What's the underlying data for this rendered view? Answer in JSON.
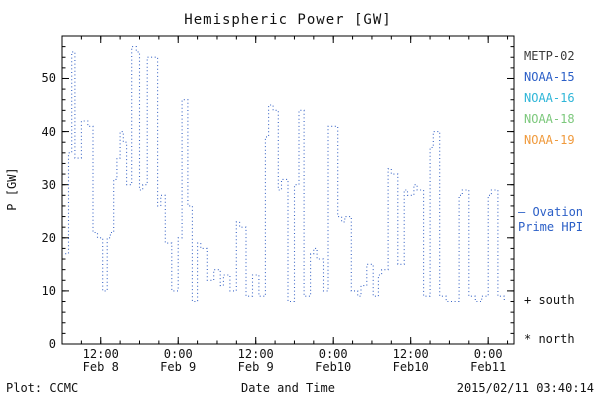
{
  "title": "Hemispheric Power [GW]",
  "axes": {
    "ylabel": "P [GW]",
    "xlabel": "Date and Time"
  },
  "footer": {
    "left": "Plot: CCMC",
    "right": "2015/02/11 03:40:14"
  },
  "legend": {
    "satellites": [
      {
        "label": "METP-02",
        "color": "#3a3a3a"
      },
      {
        "label": "NOAA-15",
        "color": "#2b5fc7"
      },
      {
        "label": "NOAA-16",
        "color": "#2fb6d8"
      },
      {
        "label": "NOAA-18",
        "color": "#7cc87c"
      },
      {
        "label": "NOAA-19",
        "color": "#f09a3c"
      }
    ],
    "ovation": {
      "label": "– Ovation\nPrime HPI",
      "color": "#2b5fc7"
    },
    "south": "+ south",
    "north": "* north"
  },
  "chart_data": {
    "type": "line",
    "title": "Hemispheric Power [GW]",
    "xlabel": "Date and Time",
    "ylabel": "P [GW]",
    "legend_position": "right",
    "grid": false,
    "line_color": "#3b66c6",
    "line_style": "dotted",
    "interpolation": "step",
    "x_unit": "hours since 2015-02-08 00:00",
    "xlim": [
      6,
      76
    ],
    "ylim": [
      0,
      58
    ],
    "yticks": [
      0,
      10,
      20,
      30,
      40,
      50
    ],
    "xticks": [
      {
        "pos": 12,
        "label": "12:00",
        "sub": "Feb 8"
      },
      {
        "pos": 24,
        "label": "0:00",
        "sub": "Feb 9"
      },
      {
        "pos": 36,
        "label": "12:00",
        "sub": "Feb 9"
      },
      {
        "pos": 48,
        "label": "0:00",
        "sub": "Feb10"
      },
      {
        "pos": 60,
        "label": "12:00",
        "sub": "Feb10"
      },
      {
        "pos": 72,
        "label": "0:00",
        "sub": "Feb11"
      }
    ],
    "series": [
      {
        "name": "Ovation Prime HPI",
        "points": [
          [
            6.5,
            17
          ],
          [
            7,
            36
          ],
          [
            7.5,
            55
          ],
          [
            8,
            35
          ],
          [
            9,
            42
          ],
          [
            10,
            41
          ],
          [
            10.8,
            21
          ],
          [
            11.5,
            20
          ],
          [
            12.3,
            10
          ],
          [
            13,
            20
          ],
          [
            13.5,
            21
          ],
          [
            14,
            31
          ],
          [
            14.5,
            35
          ],
          [
            15,
            40
          ],
          [
            15.5,
            38
          ],
          [
            16,
            30
          ],
          [
            16.8,
            56
          ],
          [
            17.5,
            55
          ],
          [
            18,
            29
          ],
          [
            18.5,
            30
          ],
          [
            19.2,
            54
          ],
          [
            20,
            54
          ],
          [
            20.8,
            26
          ],
          [
            21.3,
            28
          ],
          [
            22,
            19
          ],
          [
            23,
            10
          ],
          [
            24,
            20
          ],
          [
            24.6,
            46
          ],
          [
            25.5,
            26
          ],
          [
            26.2,
            8
          ],
          [
            27,
            19
          ],
          [
            27.5,
            18
          ],
          [
            28.5,
            12
          ],
          [
            29.5,
            14
          ],
          [
            30.5,
            11
          ],
          [
            31,
            13
          ],
          [
            32,
            10
          ],
          [
            33,
            23
          ],
          [
            33.5,
            22
          ],
          [
            34.5,
            9
          ],
          [
            35.5,
            13
          ],
          [
            36.5,
            9
          ],
          [
            37.5,
            39
          ],
          [
            38,
            45
          ],
          [
            38.7,
            44
          ],
          [
            39.5,
            29
          ],
          [
            40,
            31
          ],
          [
            41,
            8
          ],
          [
            42,
            30
          ],
          [
            42.7,
            44
          ],
          [
            43.5,
            9
          ],
          [
            44.5,
            17
          ],
          [
            45,
            18
          ],
          [
            45.5,
            16
          ],
          [
            46.5,
            10
          ],
          [
            47.2,
            41
          ],
          [
            48,
            41
          ],
          [
            48.7,
            24
          ],
          [
            49.3,
            23
          ],
          [
            49.8,
            24
          ],
          [
            50.8,
            10
          ],
          [
            51.8,
            9
          ],
          [
            52.3,
            11
          ],
          [
            53.2,
            15
          ],
          [
            54.2,
            9
          ],
          [
            55,
            13
          ],
          [
            55.5,
            14
          ],
          [
            56.5,
            33
          ],
          [
            57,
            32
          ],
          [
            58,
            15
          ],
          [
            59,
            29
          ],
          [
            59.5,
            28
          ],
          [
            60.5,
            30
          ],
          [
            61,
            29
          ],
          [
            62,
            9
          ],
          [
            63,
            37
          ],
          [
            63.5,
            40
          ],
          [
            64.5,
            9
          ],
          [
            65.5,
            8
          ],
          [
            66.5,
            8
          ],
          [
            67.5,
            28
          ],
          [
            68,
            29
          ],
          [
            69,
            9
          ],
          [
            70,
            8
          ],
          [
            71,
            9
          ],
          [
            72,
            28
          ],
          [
            72.5,
            29
          ],
          [
            73.5,
            9
          ],
          [
            74.5,
            8
          ]
        ]
      }
    ]
  }
}
